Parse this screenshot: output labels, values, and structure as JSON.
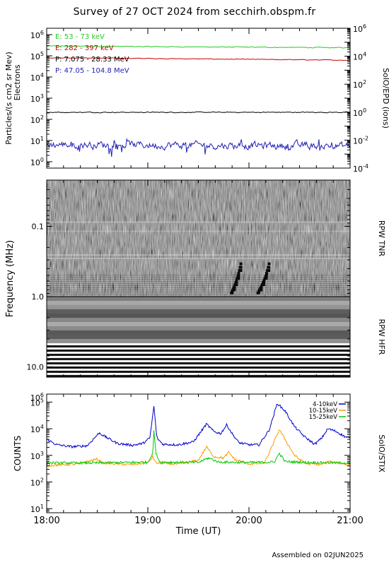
{
  "title": "Survey of 27 OCT 2024 from secchirh.obspm.fr",
  "footer": "Assembled on 02JUN2025",
  "x_axis": {
    "label": "Time (UT)",
    "ticks": [
      "18:00",
      "19:00",
      "20:00",
      "21:00"
    ],
    "range_hours": [
      18,
      21
    ]
  },
  "chart_data": [
    {
      "type": "line",
      "panel": "SolO/EPD",
      "ylabel_left": "Particles/(s cm2 sr Mev)",
      "ylabel_left_sub": "Electrons",
      "ylabel_right": "SolO/EPD (ions)",
      "y_log": true,
      "ylim_left": [
        0.5,
        2000000
      ],
      "ylim_right": [
        0.0001,
        1000000
      ],
      "left_ticks": [
        {
          "base": "10",
          "exp": "0",
          "value": 1
        },
        {
          "base": "10",
          "exp": "1",
          "value": 10
        },
        {
          "base": "10",
          "exp": "2",
          "value": 100
        },
        {
          "base": "10",
          "exp": "3",
          "value": 1000
        },
        {
          "base": "10",
          "exp": "4",
          "value": 10000
        },
        {
          "base": "10",
          "exp": "5",
          "value": 100000
        },
        {
          "base": "10",
          "exp": "6",
          "value": 1000000
        }
      ],
      "right_ticks": [
        {
          "base": "10",
          "exp": "-4",
          "value": 0.0001
        },
        {
          "base": "10",
          "exp": "-2",
          "value": 0.01
        },
        {
          "base": "10",
          "exp": "0",
          "value": 1
        },
        {
          "base": "10",
          "exp": "2",
          "value": 100
        },
        {
          "base": "10",
          "exp": "4",
          "value": 10000
        },
        {
          "base": "10",
          "exp": "6",
          "value": 1000000
        }
      ],
      "series": [
        {
          "name": "E: 53 - 73 keV",
          "color": "#22cc22",
          "level_start": 290000,
          "level_end": 240000,
          "noise": 0.015,
          "spikes": false
        },
        {
          "name": "E: 282 - 397 keV",
          "color": "#cc0000",
          "level_start": 82000,
          "level_end": 62000,
          "noise": 0.012,
          "spikes": false
        },
        {
          "name": "P: 7.075 - 28.33 MeV",
          "color": "#000000",
          "level_start": 215,
          "level_end": 215,
          "noise": 0.015,
          "spikes": false
        },
        {
          "name": "P: 47.05 - 104.8 MeV",
          "color": "#1f1fb4",
          "level_start": 6.5,
          "level_end": 5.5,
          "noise": 0.14,
          "spikes": true
        }
      ]
    },
    {
      "type": "heatmap",
      "panel": "RPW",
      "ylabel": "Frequency (MHz)",
      "y_log": true,
      "ylim": [
        14,
        0.022
      ],
      "y_ticks": [
        {
          "label": "0.1",
          "value": 0.1
        },
        {
          "label": "1.0",
          "value": 1.0
        },
        {
          "label": "10.0",
          "value": 10.0
        }
      ],
      "sub_panels": [
        {
          "name": "RPW TNR",
          "freq_range": [
            0.022,
            1.0
          ]
        },
        {
          "name": "RPW HFR",
          "freq_range": [
            1.0,
            14
          ]
        }
      ],
      "bursts": [
        {
          "start_hour": 19.82,
          "end_hour": 19.92
        },
        {
          "start_hour": 20.08,
          "end_hour": 20.2
        }
      ]
    },
    {
      "type": "line",
      "panel": "SolO/STIX",
      "ylabel_left": "COUNTS",
      "ylabel_right": "SolO/STIX",
      "y_log": true,
      "ylim": [
        7,
        200000
      ],
      "left_ticks": [
        {
          "base": "10",
          "exp": "1",
          "value": 10
        },
        {
          "base": "10",
          "exp": "2",
          "value": 100
        },
        {
          "base": "10",
          "exp": "3",
          "value": 1000
        },
        {
          "base": "10",
          "exp": "4",
          "value": 10000
        },
        {
          "base": "10",
          "exp": "5",
          "value": 100000
        },
        {
          "base": "10",
          "exp": "6",
          "value": 1000000
        }
      ],
      "series": [
        {
          "name": "4-10keV",
          "color": "#0000cc",
          "keypoints": [
            [
              18.0,
              4000
            ],
            [
              18.1,
              2500
            ],
            [
              18.25,
              2100
            ],
            [
              18.4,
              2300
            ],
            [
              18.52,
              7000
            ],
            [
              18.58,
              5000
            ],
            [
              18.7,
              2800
            ],
            [
              18.85,
              2400
            ],
            [
              18.95,
              2800
            ],
            [
              19.02,
              4500
            ],
            [
              19.06,
              70000
            ],
            [
              19.09,
              4500
            ],
            [
              19.15,
              2600
            ],
            [
              19.3,
              2500
            ],
            [
              19.45,
              3200
            ],
            [
              19.58,
              15000
            ],
            [
              19.65,
              8000
            ],
            [
              19.72,
              6500
            ],
            [
              19.78,
              14000
            ],
            [
              19.84,
              6000
            ],
            [
              19.9,
              3000
            ],
            [
              20.0,
              2500
            ],
            [
              20.1,
              2500
            ],
            [
              20.2,
              9000
            ],
            [
              20.28,
              90000
            ],
            [
              20.36,
              45000
            ],
            [
              20.45,
              12000
            ],
            [
              20.55,
              5000
            ],
            [
              20.65,
              2600
            ],
            [
              20.72,
              4500
            ],
            [
              20.78,
              10000
            ],
            [
              20.86,
              8000
            ],
            [
              20.95,
              5000
            ],
            [
              21.0,
              4300
            ]
          ]
        },
        {
          "name": "10-15keV",
          "color": "#ff9900",
          "keypoints": [
            [
              18.0,
              420
            ],
            [
              18.3,
              470
            ],
            [
              18.5,
              720
            ],
            [
              18.55,
              520
            ],
            [
              18.8,
              450
            ],
            [
              19.0,
              520
            ],
            [
              19.05,
              900
            ],
            [
              19.08,
              520
            ],
            [
              19.3,
              470
            ],
            [
              19.5,
              650
            ],
            [
              19.58,
              2100
            ],
            [
              19.65,
              900
            ],
            [
              19.75,
              800
            ],
            [
              19.8,
              1300
            ],
            [
              19.86,
              700
            ],
            [
              20.0,
              480
            ],
            [
              20.15,
              500
            ],
            [
              20.22,
              1800
            ],
            [
              20.3,
              9500
            ],
            [
              20.38,
              2800
            ],
            [
              20.45,
              1000
            ],
            [
              20.55,
              500
            ],
            [
              20.7,
              450
            ],
            [
              20.8,
              580
            ],
            [
              21.0,
              440
            ]
          ]
        },
        {
          "name": "15-25keV",
          "color": "#00cc00",
          "keypoints": [
            [
              18.0,
              520
            ],
            [
              18.5,
              520
            ],
            [
              19.0,
              560
            ],
            [
              19.05,
              1200
            ],
            [
              19.06,
              9000
            ],
            [
              19.08,
              1200
            ],
            [
              19.12,
              560
            ],
            [
              19.5,
              540
            ],
            [
              19.6,
              800
            ],
            [
              19.7,
              560
            ],
            [
              20.0,
              540
            ],
            [
              20.25,
              560
            ],
            [
              20.3,
              1200
            ],
            [
              20.36,
              580
            ],
            [
              20.6,
              540
            ],
            [
              21.0,
              520
            ]
          ]
        }
      ]
    }
  ]
}
